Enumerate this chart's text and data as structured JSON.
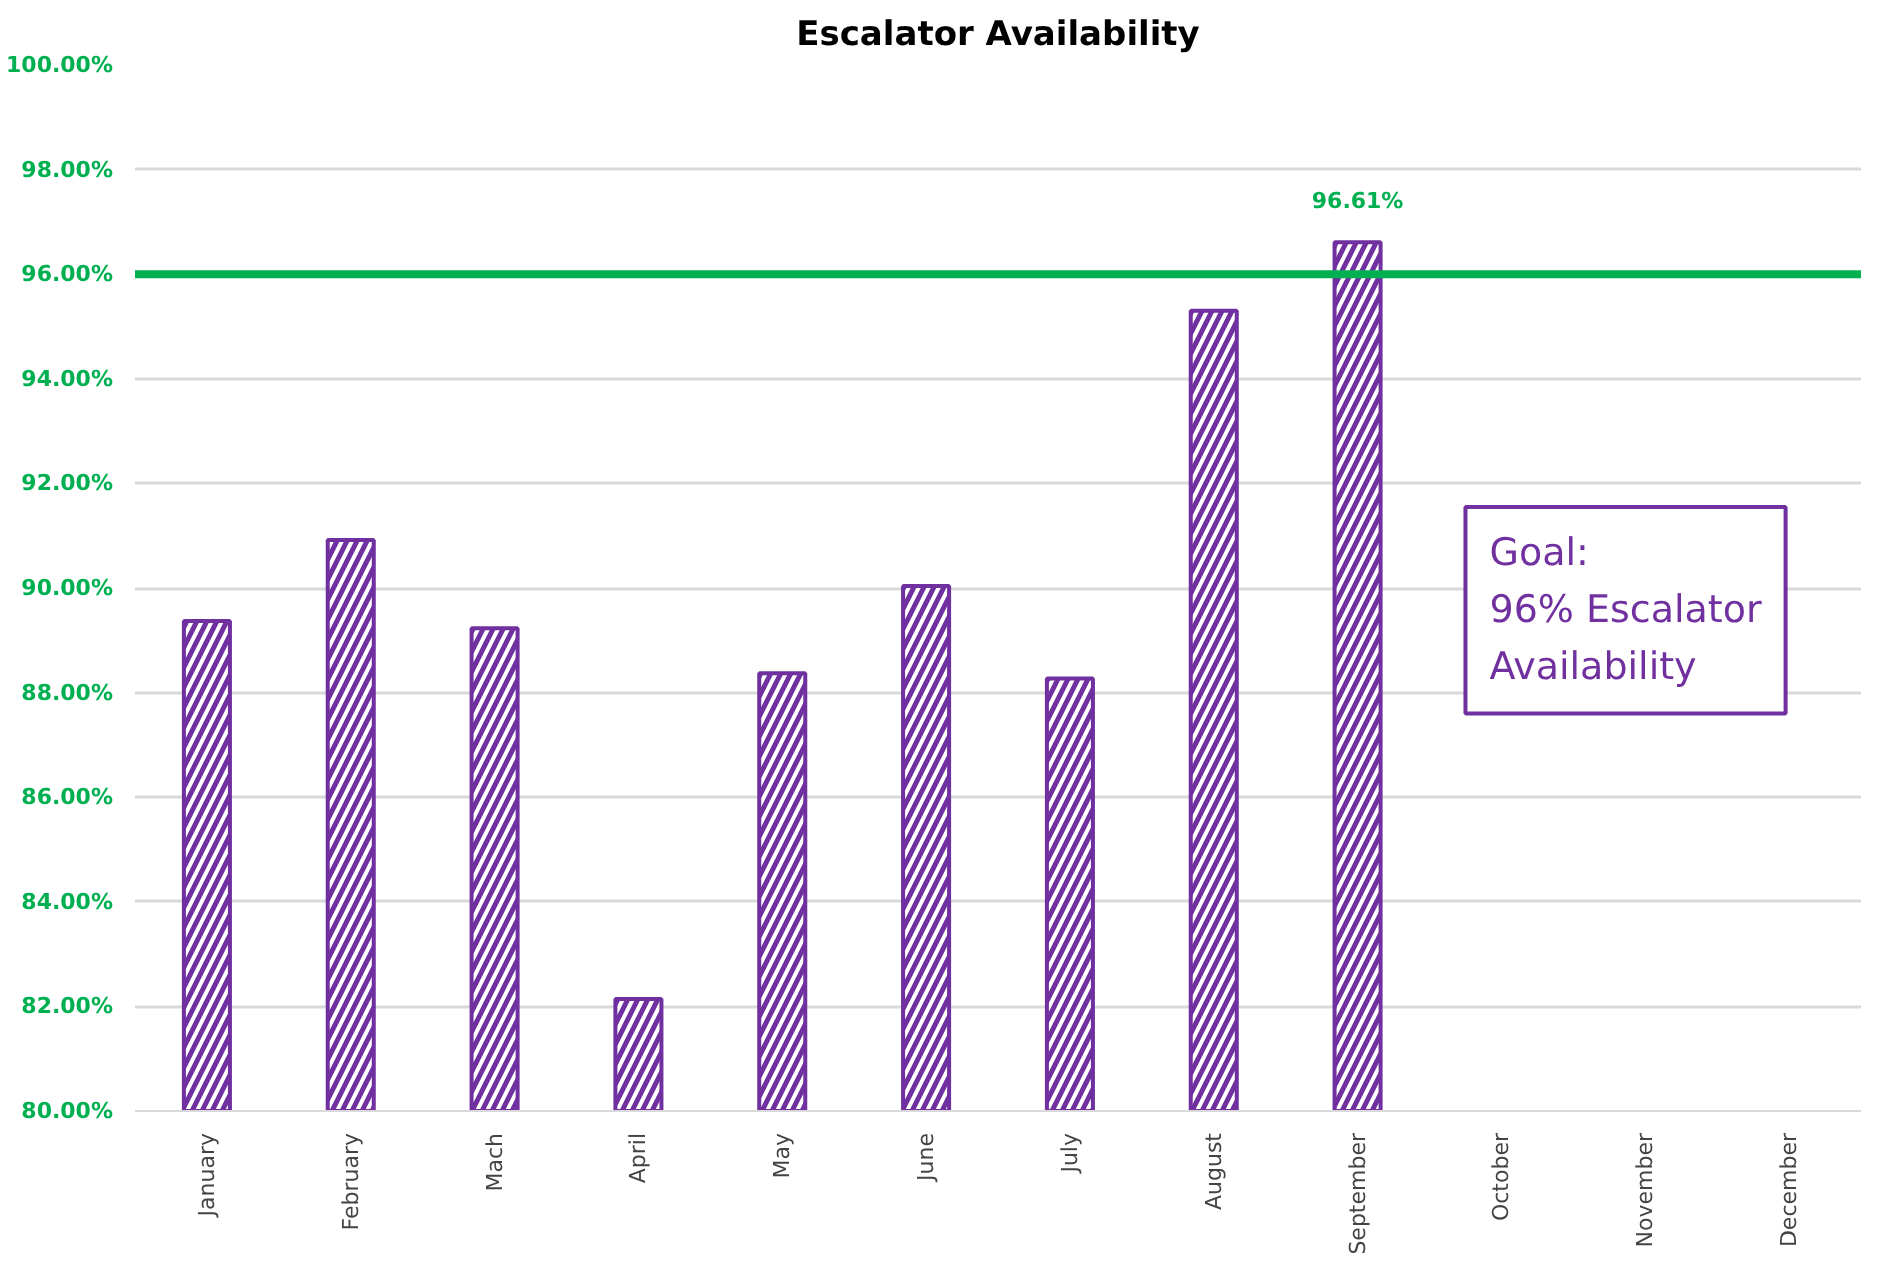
{
  "chart_data": {
    "type": "bar",
    "title": "Escalator Availability",
    "categories": [
      "January",
      "February",
      "Mach",
      "April",
      "May",
      "June",
      "July",
      "August",
      "September",
      "October",
      "November",
      "December"
    ],
    "series": [
      {
        "color": "#7030a0",
        "values": [
          89.37,
          90.92,
          89.23,
          82.14,
          88.37,
          90.04,
          88.27,
          95.3,
          96.61,
          null,
          null,
          null
        ],
        "value_labels": [
          null,
          null,
          null,
          null,
          null,
          null,
          null,
          null,
          "96.61%",
          null,
          null,
          null
        ]
      }
    ],
    "ylim": [
      80,
      100
    ],
    "yticks": [
      {
        "value": 80,
        "label": "80.00%"
      },
      {
        "value": 82,
        "label": "82.00%"
      },
      {
        "value": 84,
        "label": "84.00%"
      },
      {
        "value": 86,
        "label": "86.00%"
      },
      {
        "value": 88,
        "label": "88.00%"
      },
      {
        "value": 90,
        "label": "90.00%"
      },
      {
        "value": 92,
        "label": "92.00%"
      },
      {
        "value": 94,
        "label": "94.00%"
      },
      {
        "value": 96,
        "label": "96.00%"
      },
      {
        "value": 98,
        "label": "98.00%"
      },
      {
        "value": 100,
        "label": "100.00%"
      }
    ],
    "ref_lines": [
      {
        "axis": "y",
        "value": 96,
        "color": "#00b050"
      }
    ],
    "annotations": [
      "Goal:\n96% Escalator\nAvailability"
    ],
    "grid": "y"
  }
}
